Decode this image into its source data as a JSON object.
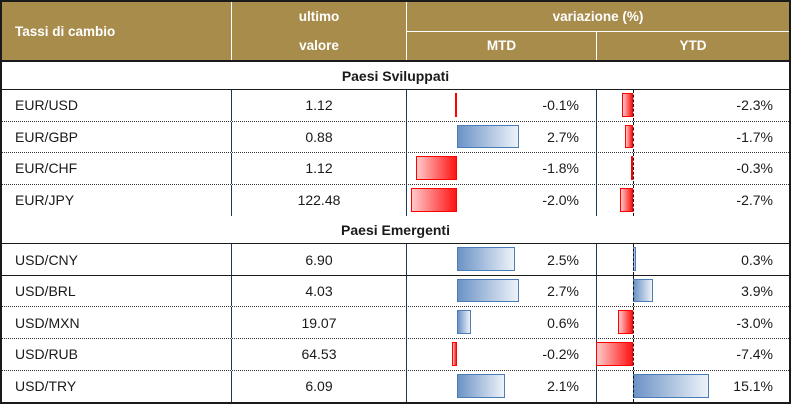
{
  "table": {
    "title": "Tassi di cambio",
    "header": {
      "value_col_line1": "ultimo",
      "value_col_line2": "valore",
      "variation_col": "variazione (%)",
      "mtd": "MTD",
      "ytd": "YTD"
    }
  },
  "colors": {
    "header_bg": "#A88C4C",
    "header_text": "#FFFFFF",
    "column_divider": "#1B3A55",
    "positive_bar_border": "#4A7CB8",
    "positive_bar_fill_start": "#6C93C6",
    "negative_bar_border": "#FF0000",
    "negative_bar_fill_start": "#FFC9C9",
    "outer_border": "#1A1A1A"
  },
  "sections": [
    {
      "title": "Paesi Sviluppati",
      "rows": [
        {
          "pair": "EUR/USD",
          "value": "1.12",
          "mtd": -0.1,
          "mtd_label": "-0.1%",
          "ytd": -2.3,
          "ytd_label": "-2.3%",
          "divider": "dotted"
        },
        {
          "pair": "EUR/GBP",
          "value": "0.88",
          "mtd": 2.7,
          "mtd_label": "2.7%",
          "ytd": -1.7,
          "ytd_label": "-1.7%",
          "divider": "dotted"
        },
        {
          "pair": "EUR/CHF",
          "value": "1.12",
          "mtd": -1.8,
          "mtd_label": "-1.8%",
          "ytd": -0.3,
          "ytd_label": "-0.3%",
          "divider": "dotted"
        },
        {
          "pair": "EUR/JPY",
          "value": "122.48",
          "mtd": -2.0,
          "mtd_label": "-2.0%",
          "ytd": -2.7,
          "ytd_label": "-2.7%",
          "divider": "none"
        }
      ]
    },
    {
      "title": "Paesi Emergenti",
      "rows": [
        {
          "pair": "USD/CNY",
          "value": "6.90",
          "mtd": 2.5,
          "mtd_label": "2.5%",
          "ytd": 0.3,
          "ytd_label": "0.3%",
          "divider": "solid"
        },
        {
          "pair": "USD/BRL",
          "value": "4.03",
          "mtd": 2.7,
          "mtd_label": "2.7%",
          "ytd": 3.9,
          "ytd_label": "3.9%",
          "divider": "dotted"
        },
        {
          "pair": "USD/MXN",
          "value": "19.07",
          "mtd": 0.6,
          "mtd_label": "0.6%",
          "ytd": -3.0,
          "ytd_label": "-3.0%",
          "divider": "dotted"
        },
        {
          "pair": "USD/RUB",
          "value": "64.53",
          "mtd": -0.2,
          "mtd_label": "-0.2%",
          "ytd": -7.4,
          "ytd_label": "-7.4%",
          "divider": "dotted"
        },
        {
          "pair": "USD/TRY",
          "value": "6.09",
          "mtd": 2.1,
          "mtd_label": "2.1%",
          "ytd": 15.1,
          "ytd_label": "15.1%",
          "divider": "none"
        }
      ]
    }
  ],
  "chart_data": {
    "type": "table",
    "title": "Tassi di cambio",
    "columns": [
      "ultimo valore",
      "variazione (%) MTD",
      "variazione (%) YTD"
    ],
    "groups": [
      "Paesi Sviluppati",
      "Paesi Emergenti"
    ],
    "categories": [
      "EUR/USD",
      "EUR/GBP",
      "EUR/CHF",
      "EUR/JPY",
      "USD/CNY",
      "USD/BRL",
      "USD/MXN",
      "USD/RUB",
      "USD/TRY"
    ],
    "series": [
      {
        "name": "ultimo valore",
        "values": [
          1.12,
          0.88,
          1.12,
          122.48,
          6.9,
          4.03,
          19.07,
          64.53,
          6.09
        ]
      },
      {
        "name": "MTD %",
        "values": [
          -0.1,
          2.7,
          -1.8,
          -2.0,
          2.5,
          2.7,
          0.6,
          -0.2,
          2.1
        ]
      },
      {
        "name": "YTD %",
        "values": [
          -2.3,
          -1.7,
          -0.3,
          -2.7,
          0.3,
          3.9,
          -3.0,
          -7.4,
          15.1
        ]
      }
    ],
    "bar_style": "excel-gradient-databar, blue=positive, red=negative, dashed zero axis in YTD"
  }
}
